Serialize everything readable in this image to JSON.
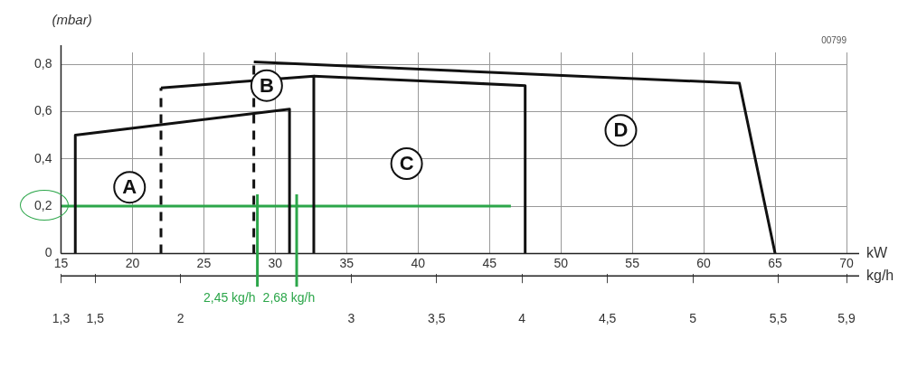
{
  "chart_data": {
    "type": "line",
    "ylabel": "(mbar)",
    "xlabel": "kW",
    "x2label": "kg/h",
    "xlim": [
      15,
      70
    ],
    "xticks": [
      15,
      20,
      25,
      30,
      35,
      40,
      45,
      50,
      55,
      60,
      65,
      70
    ],
    "x2lim": [
      1.3,
      5.9
    ],
    "x2ticks": [
      {
        "value": 1.3,
        "label": "1,3"
      },
      {
        "value": 1.5,
        "label": "1,5"
      },
      {
        "value": 2,
        "label": "2"
      },
      {
        "value": 3,
        "label": "3"
      },
      {
        "value": 3.5,
        "label": "3,5"
      },
      {
        "value": 4,
        "label": "4"
      },
      {
        "value": 4.5,
        "label": "4,5"
      },
      {
        "value": 5,
        "label": "5"
      },
      {
        "value": 5.5,
        "label": "5,5"
      },
      {
        "value": 5.9,
        "label": "5,9"
      }
    ],
    "ylim": [
      0,
      0.85
    ],
    "yticks": [
      0,
      {
        "value": 0.2,
        "label": "0,2"
      },
      {
        "value": 0.4,
        "label": "0,4"
      },
      {
        "value": 0.6,
        "label": "0,6"
      },
      {
        "value": 0.8,
        "label": "0,8"
      }
    ],
    "grid": true,
    "legend": false,
    "marker": "none",
    "series": [
      {
        "color": "#111111",
        "line_style": "solid",
        "x": [
          16,
          16,
          31,
          31
        ],
        "values": [
          0,
          0.5,
          0.61,
          0
        ]
      },
      {
        "color": "#111111",
        "line_style": "dashed",
        "x": [
          22,
          22
        ],
        "values": [
          0,
          0.7
        ]
      },
      {
        "color": "#111111",
        "line_style": "solid",
        "x": [
          22,
          32.7,
          32.7
        ],
        "values": [
          0.7,
          0.75,
          0
        ]
      },
      {
        "color": "#111111",
        "line_style": "solid",
        "x": [
          32.7,
          47.5,
          47.5
        ],
        "values": [
          0.75,
          0.71,
          0
        ]
      },
      {
        "color": "#111111",
        "line_style": "dashed",
        "x": [
          28.5,
          28.5
        ],
        "values": [
          0,
          0.8
        ]
      },
      {
        "color": "#111111",
        "line_style": "solid",
        "x": [
          28.5,
          62.5,
          65
        ],
        "values": [
          0.81,
          0.72,
          0
        ]
      },
      {
        "color": "#2ca64a",
        "line_style": "solid",
        "x": [
          15,
          46.5
        ],
        "values": [
          0.2,
          0.2
        ]
      }
    ],
    "ref_lines": [
      {
        "axis": "x2",
        "value": 2.45,
        "label": "2,45 kg/h",
        "color": "#2ca64a"
      },
      {
        "axis": "x2",
        "value": 2.68,
        "label": "2,68 kg/h",
        "color": "#2ca64a"
      }
    ],
    "annotations": [
      {
        "text": "A",
        "x": 19.8,
        "y": 0.28
      },
      {
        "text": "B",
        "x": 29.4,
        "y": 0.71
      },
      {
        "text": "C",
        "x": 39.2,
        "y": 0.38
      },
      {
        "text": "D",
        "x": 54.2,
        "y": 0.52
      },
      "00799"
    ]
  }
}
